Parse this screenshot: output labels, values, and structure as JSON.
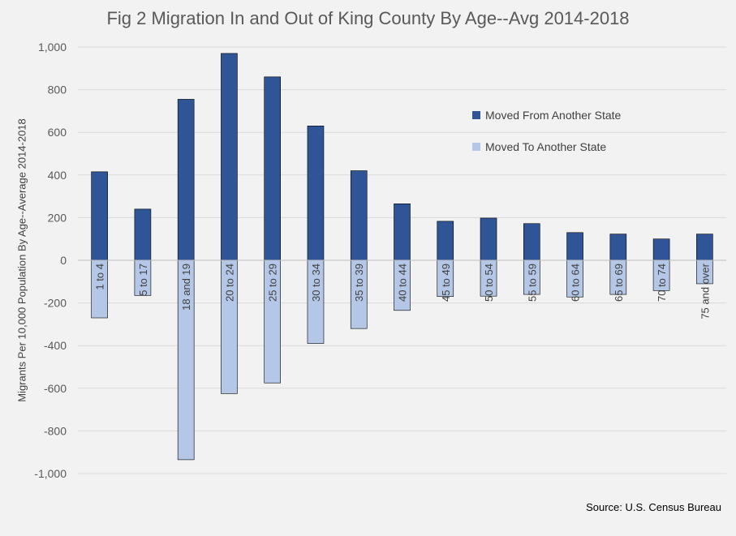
{
  "chart_data": {
    "type": "bar",
    "title": "Fig 2 Migration In and Out of King County By Age--Avg 2014-2018",
    "ylabel": "Migrants Per 10,000 Population By Age--Average 2014-2018",
    "xlabel": "",
    "source": "Source: U.S. Census Bureau",
    "categories": [
      "1 to 4",
      "5 to 17",
      "18 and 19",
      "20 to 24",
      "25 to 29",
      "30 to 34",
      "35 to 39",
      "40 to 44",
      "45 to 49",
      "50 to 54",
      "55 to 59",
      "60 to 64",
      "65 to 69",
      "70 to 74",
      "75 and over"
    ],
    "series": [
      {
        "name": "Moved From Another State",
        "color": "#2f5597",
        "values": [
          415,
          240,
          755,
          970,
          860,
          630,
          420,
          265,
          183,
          198,
          172,
          130,
          123,
          100,
          123
        ]
      },
      {
        "name": "Moved To Another State",
        "color": "#b4c7e7",
        "values": [
          -270,
          -165,
          -935,
          -625,
          -575,
          -390,
          -320,
          -235,
          -170,
          -168,
          -160,
          -172,
          -160,
          -142,
          -110
        ]
      }
    ],
    "ylim": [
      -1000,
      1000
    ],
    "yticks": [
      1000,
      800,
      600,
      400,
      200,
      0,
      -200,
      -400,
      -600,
      -800,
      -1000
    ],
    "ytick_labels": [
      "1,000",
      "800",
      "600",
      "400",
      "200",
      "0",
      "-200",
      "-400",
      "-600",
      "-800",
      "-1,000"
    ],
    "grid": true,
    "legend_position": "top-right",
    "stacked": true
  }
}
